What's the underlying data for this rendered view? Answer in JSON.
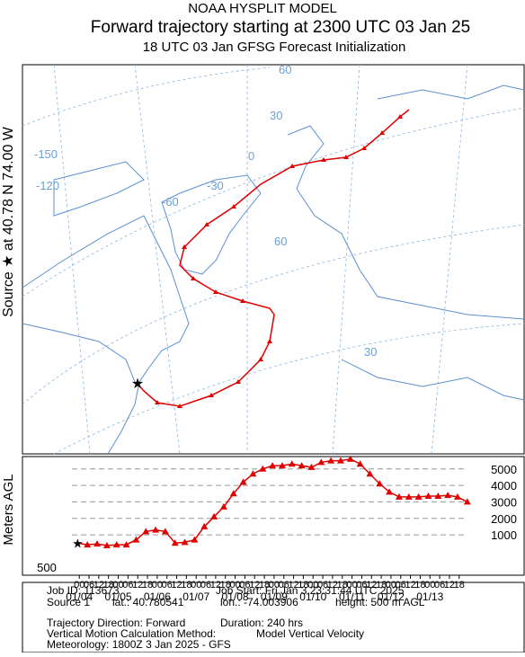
{
  "header": {
    "model": "NOAA HYSPLIT MODEL",
    "source": "Source ★ at 40.78 N 74.00 W"
  },
  "map": {
    "labels": [
      "60",
      "30",
      "0",
      "-150",
      "-120",
      "-30",
      "-60",
      "60",
      "30"
    ]
  },
  "chart_data": {
    "type": "line",
    "title": "Forward trajectory starting at 2300 UTC 03 Jan 25",
    "subtitle": "18 UTC 03 Jan     GFSG  Forecast Initialization",
    "y_label": "Meters AGL",
    "start_label": "500",
    "x": [
      0,
      6,
      12,
      18,
      24,
      30,
      36,
      42,
      48,
      54,
      60,
      66,
      72,
      78,
      84,
      90,
      96,
      102,
      108,
      114,
      120,
      126,
      132,
      138,
      144,
      150,
      156,
      162,
      168,
      174,
      180,
      186,
      192,
      198,
      204,
      210,
      216,
      222,
      228,
      234,
      240
    ],
    "series": [
      {
        "name": "Trajectory",
        "color": "#e00000",
        "values": [
          500,
          400,
          450,
          350,
          400,
          400,
          700,
          1200,
          1300,
          1200,
          500,
          550,
          700,
          1500,
          2100,
          2700,
          3500,
          4200,
          4700,
          5000,
          5200,
          5200,
          5300,
          5200,
          5100,
          5400,
          5500,
          5500,
          5600,
          5300,
          4700,
          4100,
          3600,
          3300,
          3300,
          3300,
          3350,
          3350,
          3400,
          3300,
          3000
        ]
      }
    ],
    "xlim": [
      -34,
      275
    ],
    "ylim": [
      -1450,
      5750
    ],
    "yticks": [
      1000,
      2000,
      3000,
      4000,
      5000
    ],
    "xticks": [
      {
        "value": 1,
        "label": "00"
      },
      {
        "value": 7,
        "label": "06"
      },
      {
        "value": 13,
        "label": "12"
      },
      {
        "value": 19,
        "label": "18"
      },
      {
        "value": 25,
        "label": "00"
      },
      {
        "value": 31,
        "label": "06"
      },
      {
        "value": 37,
        "label": "12"
      },
      {
        "value": 43,
        "label": "18"
      },
      {
        "value": 49,
        "label": "00"
      },
      {
        "value": 55,
        "label": "06"
      },
      {
        "value": 61,
        "label": "12"
      },
      {
        "value": 67,
        "label": "18"
      },
      {
        "value": 73,
        "label": "00"
      },
      {
        "value": 79,
        "label": "06"
      },
      {
        "value": 85,
        "label": "12"
      },
      {
        "value": 91,
        "label": "18"
      },
      {
        "value": 97,
        "label": "00"
      },
      {
        "value": 103,
        "label": "06"
      },
      {
        "value": 109,
        "label": "12"
      },
      {
        "value": 115,
        "label": "18"
      },
      {
        "value": 121,
        "label": "00"
      },
      {
        "value": 127,
        "label": "06"
      },
      {
        "value": 133,
        "label": "12"
      },
      {
        "value": 139,
        "label": "18"
      },
      {
        "value": 145,
        "label": "00"
      },
      {
        "value": 151,
        "label": "06"
      },
      {
        "value": 157,
        "label": "12"
      },
      {
        "value": 163,
        "label": "18"
      },
      {
        "value": 169,
        "label": "00"
      },
      {
        "value": 175,
        "label": "06"
      },
      {
        "value": 181,
        "label": "12"
      },
      {
        "value": 187,
        "label": "18"
      },
      {
        "value": 193,
        "label": "00"
      },
      {
        "value": 199,
        "label": "06"
      },
      {
        "value": 205,
        "label": "12"
      },
      {
        "value": 211,
        "label": "18"
      },
      {
        "value": 217,
        "label": "00"
      },
      {
        "value": 223,
        "label": "06"
      },
      {
        "value": 229,
        "label": "12"
      },
      {
        "value": 235,
        "label": "18"
      }
    ],
    "date_ticks": [
      {
        "value": 1,
        "label": "01/04"
      },
      {
        "value": 25,
        "label": "01/05"
      },
      {
        "value": 49,
        "label": "01/06"
      },
      {
        "value": 73,
        "label": "01/07"
      },
      {
        "value": 97,
        "label": "01/08"
      },
      {
        "value": 121,
        "label": "01/09"
      },
      {
        "value": 145,
        "label": "01/10"
      },
      {
        "value": 169,
        "label": "01/11"
      },
      {
        "value": 193,
        "label": "01/12"
      },
      {
        "value": 217,
        "label": "01/13"
      }
    ],
    "grid": true
  },
  "footer": {
    "job_id": "Job ID: 113673",
    "job_start": "Job Start: Fri Jan  3 23:31:44 UTC 2025",
    "source": "Source 1",
    "lat": "lat.: 40.780541",
    "lon": "lon.: -74.003906",
    "height": "height: 500 m AGL",
    "direction": "Trajectory Direction: Forward",
    "duration": "Duration: 240 hrs",
    "vertical_method_label": "Vertical Motion Calculation Method:",
    "vertical_method": "Model Vertical Velocity",
    "meteorology": "Meteorology: 1800Z 3 Jan 2025 - GFS"
  }
}
